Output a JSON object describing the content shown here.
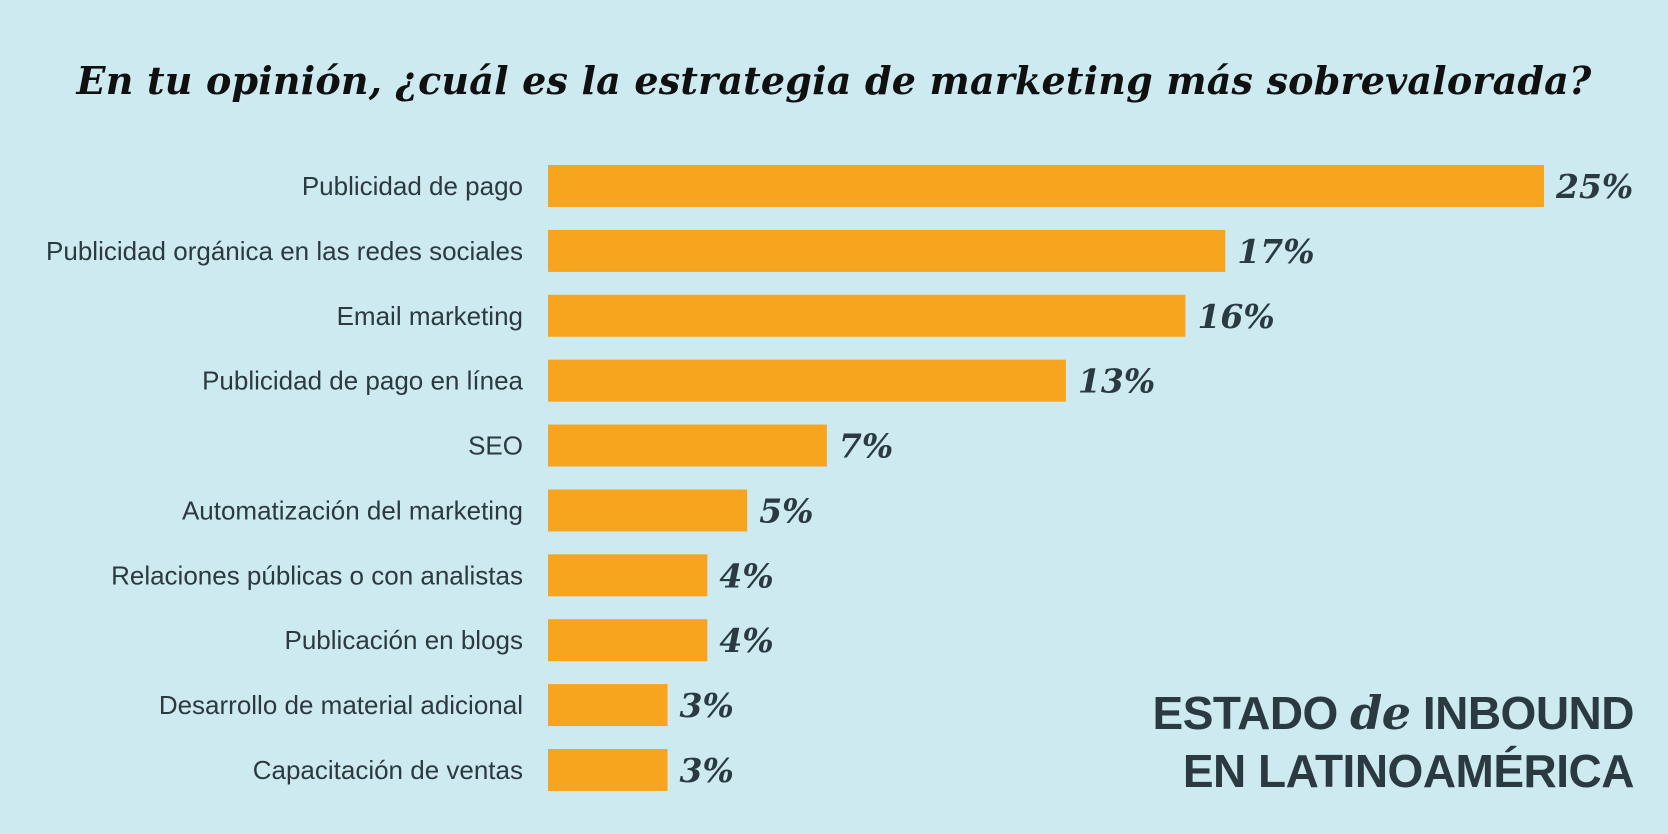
{
  "chart_data": {
    "type": "bar",
    "orientation": "horizontal",
    "title": "En tu opinión, ¿cuál es la estrategia de marketing más sobrevalorada?",
    "categories": [
      "Publicidad de pago",
      "Publicidad orgánica en las redes sociales",
      "Email marketing",
      "Publicidad de pago en línea",
      "SEO",
      "Automatización del marketing",
      "Relaciones públicas o con analistas",
      "Publicación en blogs",
      "Desarrollo de material adicional",
      "Capacitación de ventas"
    ],
    "values": [
      25,
      17,
      16,
      13,
      7,
      5,
      4,
      4,
      3,
      3
    ],
    "value_labels": [
      "25%",
      "17%",
      "16%",
      "13%",
      "7%",
      "5%",
      "4%",
      "4%",
      "3%",
      "3%"
    ],
    "xlim": [
      0,
      25
    ],
    "grid": false,
    "legend": "none",
    "colors": {
      "bar": "#f7a51e",
      "background": "#cdeaf0",
      "text": "#2b3a41"
    }
  },
  "brand": {
    "line1_pre": "ESTADO",
    "line1_de": "de",
    "line1_post": "INBOUND",
    "line2": "EN LATINOAMÉRICA"
  }
}
